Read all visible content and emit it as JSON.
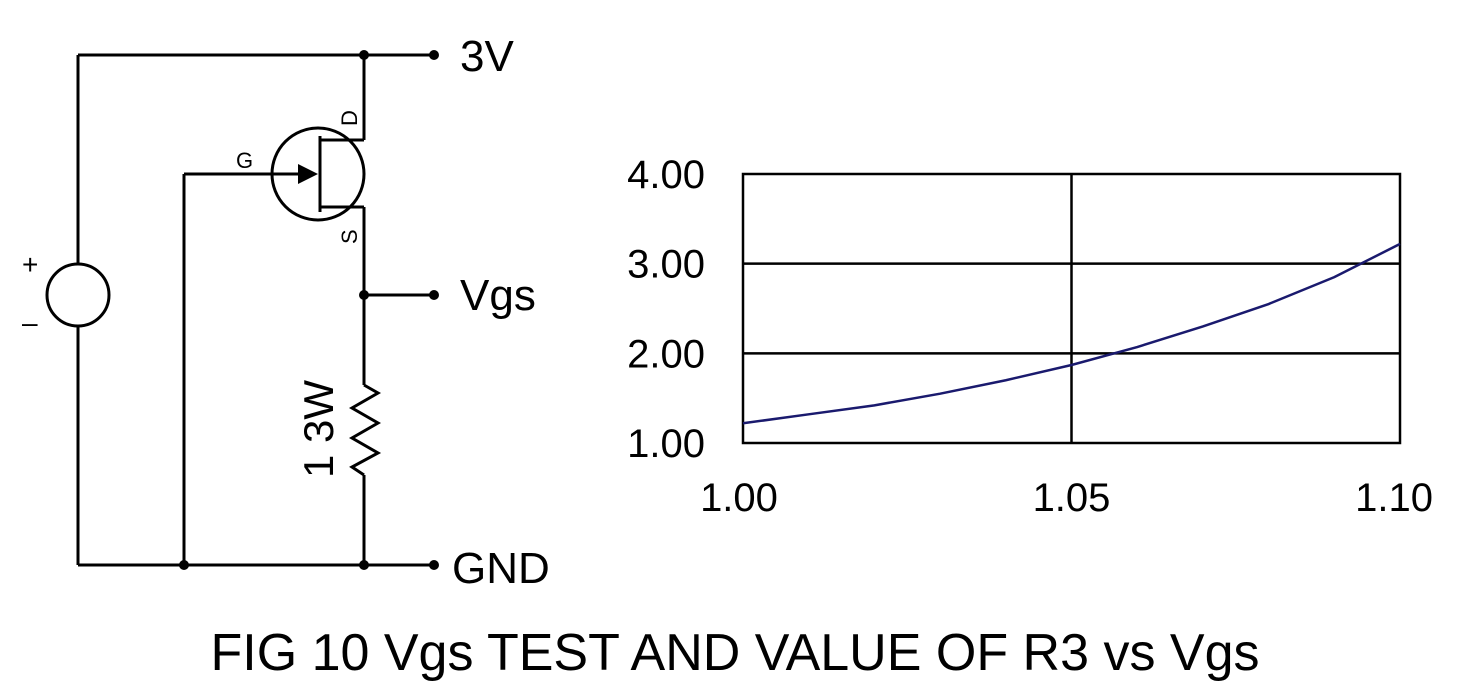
{
  "circuit": {
    "supply_label": "3V",
    "vgs_label": "Vgs",
    "gnd_label": "GND",
    "gate_label": "G",
    "drain_label": "D",
    "source_label": "S",
    "resistor_label": "1 3W",
    "plus_label": "+",
    "minus_label": "–"
  },
  "caption": "FIG 10  Vgs TEST AND VALUE OF R3 vs Vgs",
  "chart_data": {
    "type": "line",
    "title": "",
    "xlabel": "",
    "ylabel": "",
    "xlim": [
      1.0,
      1.1
    ],
    "ylim": [
      1.0,
      4.0
    ],
    "x_ticks": [
      "1.00",
      "1.05",
      "1.10"
    ],
    "y_ticks": [
      "4.00",
      "3.00",
      "2.00",
      "1.00"
    ],
    "grid": true,
    "series": [
      {
        "color": "#1a1a6e",
        "x": [
          1.0,
          1.01,
          1.02,
          1.03,
          1.04,
          1.05,
          1.06,
          1.07,
          1.08,
          1.09,
          1.1
        ],
        "y": [
          1.22,
          1.32,
          1.42,
          1.55,
          1.7,
          1.87,
          2.07,
          2.3,
          2.55,
          2.85,
          3.22
        ]
      }
    ]
  }
}
